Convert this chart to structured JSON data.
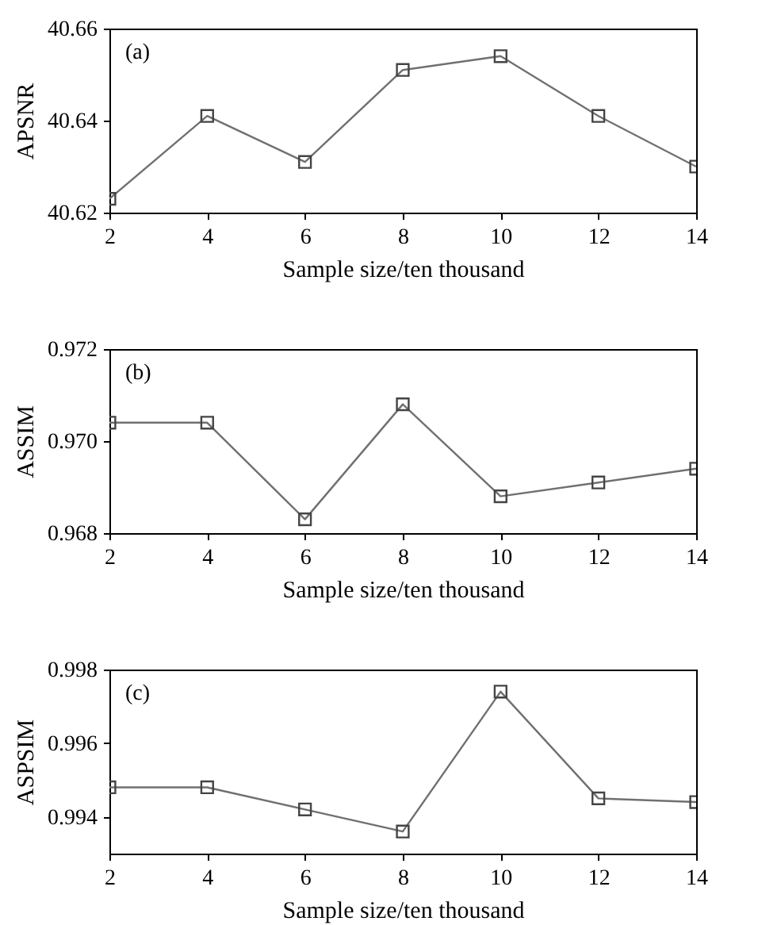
{
  "chart_data": [
    {
      "type": "line",
      "annotations": [
        "(a)"
      ],
      "xlabel": "Sample size/ten thousand",
      "ylabel": "APSNR",
      "x": [
        2,
        4,
        6,
        8,
        10,
        12,
        14
      ],
      "series": [
        {
          "color": "#707070",
          "values": [
            40.623,
            40.641,
            40.631,
            40.651,
            40.654,
            40.641,
            40.63
          ]
        }
      ],
      "xlim": [
        2,
        14
      ],
      "xticks": [
        2,
        4,
        6,
        8,
        10,
        12,
        14
      ],
      "ylim": [
        40.62,
        40.66
      ],
      "yticks": [
        40.62,
        40.64,
        40.66
      ],
      "grid": false,
      "marker": "square",
      "line_style": "solid"
    },
    {
      "type": "line",
      "annotations": [
        "(b)"
      ],
      "xlabel": "Sample size/ten thousand",
      "ylabel": "ASSIM",
      "x": [
        2,
        4,
        6,
        8,
        10,
        12,
        14
      ],
      "series": [
        {
          "color": "#707070",
          "values": [
            0.9704,
            0.9704,
            0.9683,
            0.9708,
            0.9688,
            0.9691,
            0.9694
          ]
        }
      ],
      "xlim": [
        2,
        14
      ],
      "xticks": [
        2,
        4,
        6,
        8,
        10,
        12,
        14
      ],
      "ylim": [
        0.968,
        0.972
      ],
      "yticks": [
        0.968,
        {
          "value": 0.97,
          "label": "0.970"
        },
        0.972
      ],
      "grid": false,
      "marker": "square",
      "line_style": "solid"
    },
    {
      "type": "line",
      "annotations": [
        "(c)"
      ],
      "xlabel": "Sample size/ten thousand",
      "ylabel": "ASPSIM",
      "x": [
        2,
        4,
        6,
        8,
        10,
        12,
        14
      ],
      "series": [
        {
          "color": "#707070",
          "values": [
            0.9948,
            0.9948,
            0.9942,
            0.9936,
            0.9974,
            0.9945,
            0.9944
          ]
        }
      ],
      "xlim": [
        2,
        14
      ],
      "xticks": [
        2,
        4,
        6,
        8,
        10,
        12,
        14
      ],
      "ylim": [
        0.993,
        0.998
      ],
      "yticks": [
        0.994,
        0.996,
        0.998
      ],
      "grid": false,
      "marker": "square",
      "line_style": "solid"
    }
  ]
}
